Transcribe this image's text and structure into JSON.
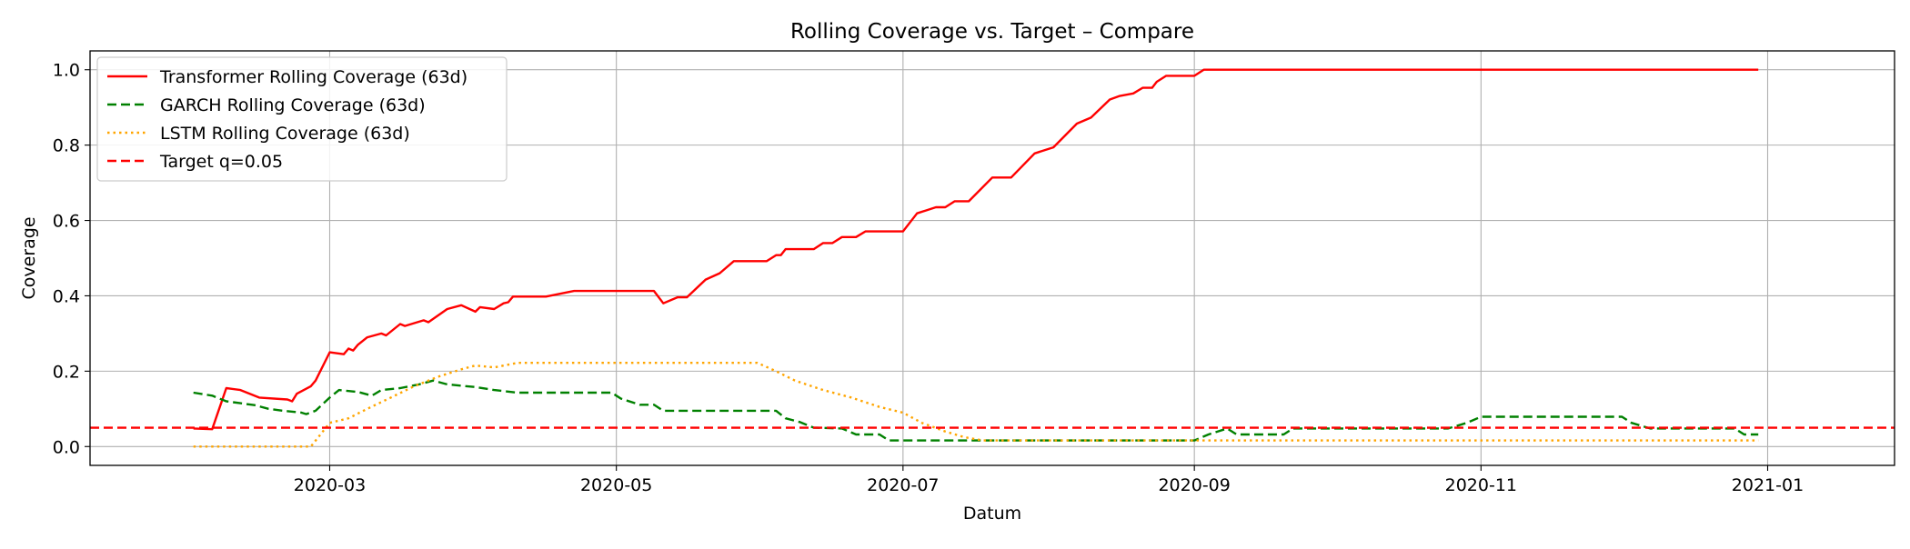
{
  "chart_data": {
    "type": "line",
    "title": "Rolling Coverage vs. Target – Compare",
    "xlabel": "Datum",
    "ylabel": "Coverage",
    "xlim": [
      "2020-01-10",
      "2021-01-28"
    ],
    "ylim": [
      -0.05,
      1.05
    ],
    "x_ticks": [
      "2020-03-01",
      "2020-05-01",
      "2020-07-01",
      "2020-09-01",
      "2020-11-01",
      "2021-01-01"
    ],
    "x_tick_labels": [
      "2020-03",
      "2020-05",
      "2020-07",
      "2020-09",
      "2020-11",
      "2021-01"
    ],
    "y_ticks": [
      0.0,
      0.2,
      0.4,
      0.6,
      0.8,
      1.0
    ],
    "y_tick_labels": [
      "0.0",
      "0.2",
      "0.4",
      "0.6",
      "0.8",
      "1.0"
    ],
    "grid": true,
    "legend_position": "top-left",
    "series": [
      {
        "name": "Transformer Rolling Coverage (63d)",
        "color": "#ff0000",
        "style": "solid",
        "points": [
          [
            "2020-02-01",
            0.048
          ],
          [
            "2020-02-05",
            0.046
          ],
          [
            "2020-02-08",
            0.155
          ],
          [
            "2020-02-11",
            0.15
          ],
          [
            "2020-02-15",
            0.13
          ],
          [
            "2020-02-21",
            0.125
          ],
          [
            "2020-02-22",
            0.12
          ],
          [
            "2020-02-23",
            0.14
          ],
          [
            "2020-02-26",
            0.16
          ],
          [
            "2020-02-27",
            0.175
          ],
          [
            "2020-03-01",
            0.25
          ],
          [
            "2020-03-04",
            0.245
          ],
          [
            "2020-03-05",
            0.26
          ],
          [
            "2020-03-06",
            0.255
          ],
          [
            "2020-03-07",
            0.27
          ],
          [
            "2020-03-09",
            0.29
          ],
          [
            "2020-03-12",
            0.3
          ],
          [
            "2020-03-13",
            0.295
          ],
          [
            "2020-03-16",
            0.325
          ],
          [
            "2020-03-17",
            0.32
          ],
          [
            "2020-03-21",
            0.335
          ],
          [
            "2020-03-22",
            0.33
          ],
          [
            "2020-03-26",
            0.365
          ],
          [
            "2020-03-29",
            0.375
          ],
          [
            "2020-04-01",
            0.358
          ],
          [
            "2020-04-02",
            0.37
          ],
          [
            "2020-04-05",
            0.365
          ],
          [
            "2020-04-07",
            0.38
          ],
          [
            "2020-04-08",
            0.383
          ],
          [
            "2020-04-09",
            0.398
          ],
          [
            "2020-04-16",
            0.398
          ],
          [
            "2020-04-22",
            0.413
          ],
          [
            "2020-05-06",
            0.413
          ],
          [
            "2020-05-09",
            0.413
          ],
          [
            "2020-05-11",
            0.38
          ],
          [
            "2020-05-14",
            0.396
          ],
          [
            "2020-05-16",
            0.396
          ],
          [
            "2020-05-20",
            0.443
          ],
          [
            "2020-05-23",
            0.46
          ],
          [
            "2020-05-26",
            0.492
          ],
          [
            "2020-06-02",
            0.492
          ],
          [
            "2020-06-04",
            0.508
          ],
          [
            "2020-06-05",
            0.508
          ],
          [
            "2020-06-06",
            0.524
          ],
          [
            "2020-06-09",
            0.524
          ],
          [
            "2020-06-12",
            0.524
          ],
          [
            "2020-06-14",
            0.54
          ],
          [
            "2020-06-16",
            0.54
          ],
          [
            "2020-06-18",
            0.556
          ],
          [
            "2020-06-21",
            0.556
          ],
          [
            "2020-06-23",
            0.571
          ],
          [
            "2020-07-01",
            0.571
          ],
          [
            "2020-07-04",
            0.619
          ],
          [
            "2020-07-08",
            0.635
          ],
          [
            "2020-07-10",
            0.635
          ],
          [
            "2020-07-12",
            0.651
          ],
          [
            "2020-07-15",
            0.651
          ],
          [
            "2020-07-20",
            0.714
          ],
          [
            "2020-07-24",
            0.714
          ],
          [
            "2020-07-29",
            0.778
          ],
          [
            "2020-08-02",
            0.794
          ],
          [
            "2020-08-07",
            0.857
          ],
          [
            "2020-08-10",
            0.873
          ],
          [
            "2020-08-14",
            0.921
          ],
          [
            "2020-08-16",
            0.93
          ],
          [
            "2020-08-19",
            0.937
          ],
          [
            "2020-08-21",
            0.952
          ],
          [
            "2020-08-23",
            0.952
          ],
          [
            "2020-08-24",
            0.968
          ],
          [
            "2020-08-26",
            0.984
          ],
          [
            "2020-09-01",
            0.984
          ],
          [
            "2020-09-03",
            1.0
          ],
          [
            "2020-12-30",
            1.0
          ]
        ]
      },
      {
        "name": "GARCH Rolling Coverage (63d)",
        "color": "#008000",
        "style": "dashed",
        "points": [
          [
            "2020-02-01",
            0.143
          ],
          [
            "2020-02-05",
            0.135
          ],
          [
            "2020-02-08",
            0.12
          ],
          [
            "2020-02-11",
            0.115
          ],
          [
            "2020-02-14",
            0.11
          ],
          [
            "2020-02-17",
            0.1
          ],
          [
            "2020-02-20",
            0.095
          ],
          [
            "2020-02-24",
            0.09
          ],
          [
            "2020-02-25",
            0.086
          ],
          [
            "2020-02-27",
            0.095
          ],
          [
            "2020-03-01",
            0.13
          ],
          [
            "2020-03-03",
            0.15
          ],
          [
            "2020-03-07",
            0.145
          ],
          [
            "2020-03-10",
            0.135
          ],
          [
            "2020-03-12",
            0.15
          ],
          [
            "2020-03-16",
            0.155
          ],
          [
            "2020-03-20",
            0.165
          ],
          [
            "2020-03-23",
            0.175
          ],
          [
            "2020-03-26",
            0.165
          ],
          [
            "2020-04-01",
            0.158
          ],
          [
            "2020-04-05",
            0.15
          ],
          [
            "2020-04-10",
            0.143
          ],
          [
            "2020-04-30",
            0.143
          ],
          [
            "2020-05-02",
            0.127
          ],
          [
            "2020-05-06",
            0.111
          ],
          [
            "2020-05-09",
            0.111
          ],
          [
            "2020-05-11",
            0.095
          ],
          [
            "2020-06-04",
            0.095
          ],
          [
            "2020-06-06",
            0.075
          ],
          [
            "2020-06-09",
            0.065
          ],
          [
            "2020-06-12",
            0.05
          ],
          [
            "2020-06-18",
            0.048
          ],
          [
            "2020-06-21",
            0.032
          ],
          [
            "2020-06-26",
            0.032
          ],
          [
            "2020-06-28",
            0.016
          ],
          [
            "2020-09-01",
            0.016
          ],
          [
            "2020-09-04",
            0.032
          ],
          [
            "2020-09-08",
            0.048
          ],
          [
            "2020-09-10",
            0.032
          ],
          [
            "2020-09-20",
            0.032
          ],
          [
            "2020-09-22",
            0.048
          ],
          [
            "2020-10-25",
            0.048
          ],
          [
            "2020-10-29",
            0.063
          ],
          [
            "2020-11-01",
            0.079
          ],
          [
            "2020-12-01",
            0.079
          ],
          [
            "2020-12-03",
            0.063
          ],
          [
            "2020-12-07",
            0.048
          ],
          [
            "2020-12-25",
            0.048
          ],
          [
            "2020-12-27",
            0.032
          ],
          [
            "2020-12-30",
            0.032
          ]
        ]
      },
      {
        "name": "LSTM Rolling Coverage (63d)",
        "color": "#ffa500",
        "style": "dotted",
        "points": [
          [
            "2020-02-01",
            0.0
          ],
          [
            "2020-02-26",
            0.0
          ],
          [
            "2020-03-01",
            0.063
          ],
          [
            "2020-03-05",
            0.075
          ],
          [
            "2020-03-09",
            0.1
          ],
          [
            "2020-03-14",
            0.13
          ],
          [
            "2020-03-19",
            0.16
          ],
          [
            "2020-03-24",
            0.185
          ],
          [
            "2020-03-29",
            0.205
          ],
          [
            "2020-04-01",
            0.215
          ],
          [
            "2020-04-05",
            0.21
          ],
          [
            "2020-04-10",
            0.222
          ],
          [
            "2020-05-31",
            0.222
          ],
          [
            "2020-06-04",
            0.2
          ],
          [
            "2020-06-08",
            0.175
          ],
          [
            "2020-06-14",
            0.15
          ],
          [
            "2020-06-20",
            0.13
          ],
          [
            "2020-06-26",
            0.105
          ],
          [
            "2020-07-01",
            0.09
          ],
          [
            "2020-07-05",
            0.063
          ],
          [
            "2020-07-10",
            0.04
          ],
          [
            "2020-07-14",
            0.025
          ],
          [
            "2020-07-18",
            0.016
          ],
          [
            "2020-12-30",
            0.016
          ]
        ]
      },
      {
        "name": "Target q=0.05",
        "color": "#ff0000",
        "style": "dashed",
        "hline": 0.05
      }
    ]
  }
}
